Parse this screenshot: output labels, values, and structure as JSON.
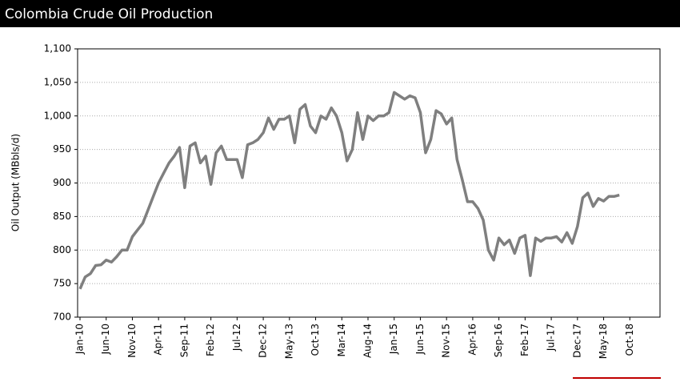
{
  "chart_data": {
    "type": "line",
    "title": "Colombia Crude Oil Production",
    "y_label": "Oil Output (MBbls/d)",
    "categories": [
      "Jan-10",
      null,
      null,
      null,
      null,
      "Jun-10",
      null,
      null,
      null,
      null,
      "Nov-10",
      null,
      null,
      null,
      null,
      "Apr-11",
      null,
      null,
      null,
      null,
      "Sep-11",
      null,
      null,
      null,
      null,
      "Feb-12",
      null,
      null,
      null,
      null,
      "Jul-12",
      null,
      null,
      null,
      null,
      "Dec-12",
      null,
      null,
      null,
      null,
      "May-13",
      null,
      null,
      null,
      null,
      "Oct-13",
      null,
      null,
      null,
      null,
      "Mar-14",
      null,
      null,
      null,
      null,
      "Aug-14",
      null,
      null,
      null,
      null,
      "Jan-15",
      null,
      null,
      null,
      null,
      "Jun-15",
      null,
      null,
      null,
      null,
      "Nov-15",
      null,
      null,
      null,
      null,
      "Apr-16",
      null,
      null,
      null,
      null,
      "Sep-16",
      null,
      null,
      null,
      null,
      "Feb-17",
      null,
      null,
      null,
      null,
      "Jul-17",
      null,
      null,
      null,
      null,
      "Dec-17",
      null,
      null,
      null,
      null,
      "May-18",
      null,
      null,
      null,
      null,
      "Oct-18",
      null,
      null,
      null,
      null,
      null
    ],
    "series": [
      {
        "name": "Oil Output",
        "color": "#7f7f7f",
        "values": [
          742,
          760,
          765,
          777,
          778,
          785,
          782,
          790,
          800,
          800,
          820,
          830,
          840,
          860,
          880,
          900,
          915,
          930,
          940,
          953,
          893,
          955,
          960,
          930,
          940,
          898,
          945,
          955,
          935,
          935,
          935,
          908,
          957,
          960,
          965,
          975,
          997,
          980,
          995,
          995,
          1000,
          960,
          1010,
          1017,
          985,
          975,
          1000,
          995,
          1012,
          1000,
          975,
          933,
          950,
          1005,
          965,
          1000,
          993,
          1000,
          1000,
          1005,
          1035,
          1030,
          1025,
          1030,
          1027,
          1005,
          945,
          965,
          1008,
          1003,
          988,
          997,
          935,
          905,
          872,
          872,
          862,
          845,
          800,
          785,
          818,
          808,
          815,
          795,
          818,
          822,
          762,
          818,
          813,
          818,
          818,
          820,
          812,
          826,
          810,
          835,
          878,
          885,
          865,
          877,
          873,
          880,
          880,
          882,
          null,
          null,
          null,
          null,
          null,
          null,
          null
        ]
      }
    ],
    "ylim": [
      700,
      1100
    ],
    "yticks": [
      700,
      750,
      800,
      850,
      900,
      950,
      {
        "value": 1000,
        "label": "1,000"
      },
      {
        "value": 1050,
        "label": "1,050"
      },
      {
        "value": 1100,
        "label": "1,100"
      }
    ],
    "grid": true
  }
}
